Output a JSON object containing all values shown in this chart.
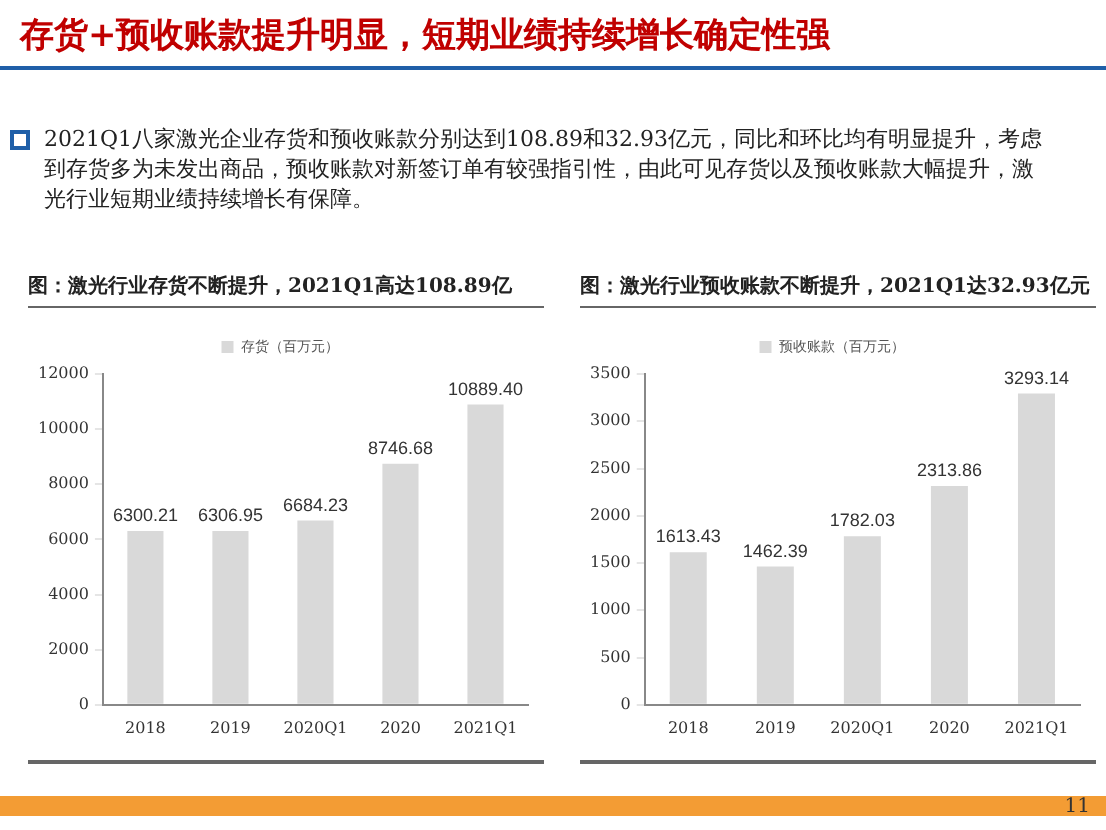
{
  "chart_data": [
    {
      "type": "other",
      "title": "存货+预收账款提升明显，短期业绩持续增长确定性强",
      "annotations": [
        "2021Q1八家激光企业存货和预收账款分别达到108.89和32.93亿元，同比和环比均有明显提升，考虑到存货多为未发出商品，预收账款对新签订单有较强指引性，由此可见存货以及预收账款大幅提升，激光行业短期业绩持续增长有保障。",
        "11"
      ]
    },
    {
      "type": "bar",
      "title": "图：激光行业存货不断提升，2021Q1高达108.89亿",
      "categories": [
        "2018",
        "2019",
        "2020Q1",
        "2020",
        "2021Q1"
      ],
      "series": [
        {
          "name": "存货（百万元）",
          "color": "#d9d9d9",
          "values": [
            6300.21,
            6306.95,
            6684.23,
            8746.68,
            10889.4
          ],
          "value_labels": [
            "6300.21",
            "6306.95",
            "6684.23",
            "8746.68",
            "10889.40"
          ]
        }
      ],
      "ylim": [
        0,
        12000
      ],
      "yticks": [
        0,
        2000,
        4000,
        6000,
        8000,
        10000,
        12000
      ],
      "grid": false,
      "legend": "top"
    },
    {
      "type": "bar",
      "title": "图：激光行业预收账款不断提升，2021Q1达32.93亿元",
      "categories": [
        "2018",
        "2019",
        "2020Q1",
        "2020",
        "2021Q1"
      ],
      "series": [
        {
          "name": "预收账款（百万元）",
          "color": "#d9d9d9",
          "values": [
            1613.43,
            1462.39,
            1782.03,
            2313.86,
            3293.14
          ],
          "value_labels": [
            "1613.43",
            "1462.39",
            "1782.03",
            "2313.86",
            "3293.14"
          ]
        }
      ],
      "ylim": [
        0,
        3500
      ],
      "yticks": [
        0,
        500,
        1000,
        1500,
        2000,
        2500,
        3000,
        3500
      ],
      "grid": false,
      "legend": "top"
    }
  ]
}
